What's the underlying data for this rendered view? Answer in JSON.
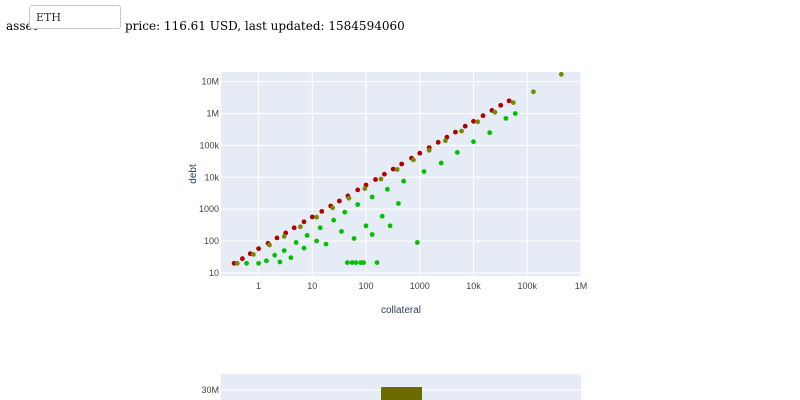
{
  "controls": {
    "asset_label": "asset",
    "asset_value": "ETH",
    "price_line": "price: 116.61 USD, last updated: 1584594060"
  },
  "colors": {
    "plot_background": "#e5ecf6",
    "grid": "#ffffff",
    "healthy": "#00c000",
    "medium": "#7a8a00",
    "risky": "#b00000",
    "bar": "#6b6b00"
  },
  "chart_data": [
    {
      "type": "scatter",
      "title": "",
      "xlabel": "collateral",
      "ylabel": "debt",
      "x_scale": "log",
      "y_scale": "log",
      "xlim": [
        0.2,
        1000000
      ],
      "ylim": [
        8,
        20000000
      ],
      "grid": true,
      "x_ticks": [
        {
          "value": 1,
          "label": "1"
        },
        {
          "value": 10,
          "label": "10"
        },
        {
          "value": 100,
          "label": "100"
        },
        {
          "value": 1000,
          "label": "1000"
        },
        {
          "value": 10000,
          "label": "10k"
        },
        {
          "value": 100000,
          "label": "100k"
        },
        {
          "value": 1000000,
          "label": "1M"
        }
      ],
      "y_ticks": [
        {
          "value": 10,
          "label": "10"
        },
        {
          "value": 100,
          "label": "100"
        },
        {
          "value": 1000,
          "label": "1000"
        },
        {
          "value": 10000,
          "label": "10k"
        },
        {
          "value": 100000,
          "label": "100k"
        },
        {
          "value": 1000000,
          "label": "1M"
        },
        {
          "value": 10000000,
          "label": "10M"
        }
      ],
      "points": [
        {
          "x": 0.35,
          "y": 20,
          "c": "r"
        },
        {
          "x": 0.5,
          "y": 28,
          "c": "r"
        },
        {
          "x": 0.7,
          "y": 40,
          "c": "r"
        },
        {
          "x": 1,
          "y": 58,
          "c": "r"
        },
        {
          "x": 1.5,
          "y": 85,
          "c": "r"
        },
        {
          "x": 2.2,
          "y": 125,
          "c": "r"
        },
        {
          "x": 3.2,
          "y": 180,
          "c": "r"
        },
        {
          "x": 4.6,
          "y": 260,
          "c": "r"
        },
        {
          "x": 7,
          "y": 400,
          "c": "r"
        },
        {
          "x": 10,
          "y": 570,
          "c": "r"
        },
        {
          "x": 15,
          "y": 850,
          "c": "r"
        },
        {
          "x": 22,
          "y": 1250,
          "c": "r"
        },
        {
          "x": 32,
          "y": 1800,
          "c": "r"
        },
        {
          "x": 46,
          "y": 2600,
          "c": "r"
        },
        {
          "x": 70,
          "y": 4000,
          "c": "r"
        },
        {
          "x": 100,
          "y": 5700,
          "c": "r"
        },
        {
          "x": 150,
          "y": 8500,
          "c": "r"
        },
        {
          "x": 220,
          "y": 12500,
          "c": "r"
        },
        {
          "x": 320,
          "y": 18000,
          "c": "r"
        },
        {
          "x": 460,
          "y": 26000,
          "c": "r"
        },
        {
          "x": 700,
          "y": 40000,
          "c": "r"
        },
        {
          "x": 1000,
          "y": 57000,
          "c": "r"
        },
        {
          "x": 1500,
          "y": 85000,
          "c": "r"
        },
        {
          "x": 2200,
          "y": 125000,
          "c": "r"
        },
        {
          "x": 3200,
          "y": 180000,
          "c": "r"
        },
        {
          "x": 4600,
          "y": 260000,
          "c": "r"
        },
        {
          "x": 7000,
          "y": 400000,
          "c": "r"
        },
        {
          "x": 10000,
          "y": 570000,
          "c": "r"
        },
        {
          "x": 15000,
          "y": 850000,
          "c": "r"
        },
        {
          "x": 22000,
          "y": 1250000,
          "c": "r"
        },
        {
          "x": 32000,
          "y": 1800000,
          "c": "r"
        },
        {
          "x": 46000,
          "y": 2500000,
          "c": "r"
        },
        {
          "x": 0.4,
          "y": 20,
          "c": "m"
        },
        {
          "x": 0.8,
          "y": 38,
          "c": "m"
        },
        {
          "x": 1.6,
          "y": 75,
          "c": "m"
        },
        {
          "x": 3,
          "y": 140,
          "c": "m"
        },
        {
          "x": 6,
          "y": 280,
          "c": "m"
        },
        {
          "x": 12,
          "y": 560,
          "c": "m"
        },
        {
          "x": 24,
          "y": 1100,
          "c": "m"
        },
        {
          "x": 48,
          "y": 2200,
          "c": "m"
        },
        {
          "x": 95,
          "y": 4400,
          "c": "m"
        },
        {
          "x": 190,
          "y": 8800,
          "c": "m"
        },
        {
          "x": 380,
          "y": 17500,
          "c": "m"
        },
        {
          "x": 760,
          "y": 35000,
          "c": "m"
        },
        {
          "x": 1500,
          "y": 70000,
          "c": "m"
        },
        {
          "x": 3000,
          "y": 140000,
          "c": "m"
        },
        {
          "x": 6000,
          "y": 280000,
          "c": "m"
        },
        {
          "x": 12000,
          "y": 550000,
          "c": "m"
        },
        {
          "x": 25000,
          "y": 1100000,
          "c": "m"
        },
        {
          "x": 55000,
          "y": 2200000,
          "c": "m"
        },
        {
          "x": 130000,
          "y": 4800000,
          "c": "m"
        },
        {
          "x": 430000,
          "y": 17000000,
          "c": "m"
        },
        {
          "x": 0.6,
          "y": 20,
          "c": "g"
        },
        {
          "x": 1,
          "y": 20,
          "c": "g"
        },
        {
          "x": 1.4,
          "y": 24,
          "c": "g"
        },
        {
          "x": 2,
          "y": 36,
          "c": "g"
        },
        {
          "x": 2.5,
          "y": 22,
          "c": "g"
        },
        {
          "x": 3,
          "y": 50,
          "c": "g"
        },
        {
          "x": 4,
          "y": 30,
          "c": "g"
        },
        {
          "x": 5,
          "y": 90,
          "c": "g"
        },
        {
          "x": 7,
          "y": 60,
          "c": "g"
        },
        {
          "x": 8,
          "y": 150,
          "c": "g"
        },
        {
          "x": 12,
          "y": 100,
          "c": "g"
        },
        {
          "x": 14,
          "y": 260,
          "c": "g"
        },
        {
          "x": 18,
          "y": 80,
          "c": "g"
        },
        {
          "x": 25,
          "y": 450,
          "c": "g"
        },
        {
          "x": 35,
          "y": 200,
          "c": "g"
        },
        {
          "x": 40,
          "y": 800,
          "c": "g"
        },
        {
          "x": 45,
          "y": 21,
          "c": "g"
        },
        {
          "x": 55,
          "y": 21,
          "c": "g"
        },
        {
          "x": 60,
          "y": 120,
          "c": "g"
        },
        {
          "x": 65,
          "y": 21,
          "c": "g"
        },
        {
          "x": 70,
          "y": 1400,
          "c": "g"
        },
        {
          "x": 80,
          "y": 21,
          "c": "g"
        },
        {
          "x": 90,
          "y": 21,
          "c": "g"
        },
        {
          "x": 100,
          "y": 300,
          "c": "g"
        },
        {
          "x": 130,
          "y": 160,
          "c": "g"
        },
        {
          "x": 130,
          "y": 2400,
          "c": "g"
        },
        {
          "x": 160,
          "y": 21,
          "c": "g"
        },
        {
          "x": 200,
          "y": 600,
          "c": "g"
        },
        {
          "x": 250,
          "y": 4200,
          "c": "g"
        },
        {
          "x": 280,
          "y": 300,
          "c": "g"
        },
        {
          "x": 400,
          "y": 1500,
          "c": "g"
        },
        {
          "x": 500,
          "y": 7500,
          "c": "g"
        },
        {
          "x": 900,
          "y": 90,
          "c": "g"
        },
        {
          "x": 1200,
          "y": 15000,
          "c": "g"
        },
        {
          "x": 2500,
          "y": 28000,
          "c": "g"
        },
        {
          "x": 5000,
          "y": 60000,
          "c": "g"
        },
        {
          "x": 10000,
          "y": 130000,
          "c": "g"
        },
        {
          "x": 20000,
          "y": 250000,
          "c": "g"
        },
        {
          "x": 40000,
          "y": 700000,
          "c": "g"
        },
        {
          "x": 60000,
          "y": 1000000,
          "c": "g"
        }
      ]
    },
    {
      "type": "bar",
      "title": "",
      "y_ticks": [
        {
          "value": 30000000,
          "label": "30M"
        }
      ],
      "bars": [
        {
          "value": 31000000
        }
      ]
    }
  ]
}
